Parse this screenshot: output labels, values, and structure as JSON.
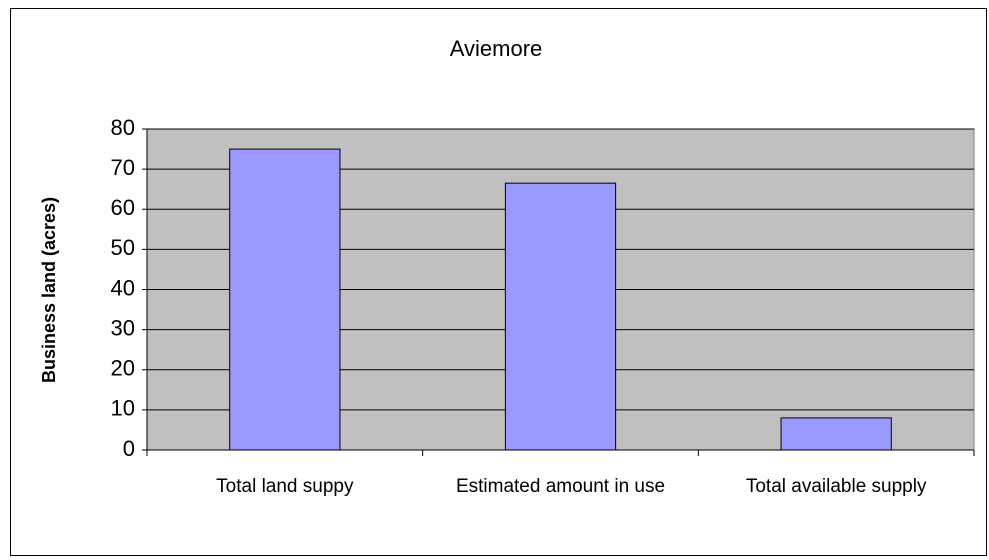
{
  "chart_data": {
    "type": "bar",
    "title": "Aviemore",
    "y_label": "Business land (acres)",
    "categories": [
      "Total land suppy",
      "Estimated amount in use",
      "Total available supply"
    ],
    "values": [
      75,
      66.5,
      8
    ],
    "color": "#9999ff",
    "ylim": [
      0,
      80
    ],
    "yticks": [
      0,
      10,
      20,
      30,
      40,
      50,
      60,
      70,
      80
    ],
    "grid": true
  }
}
